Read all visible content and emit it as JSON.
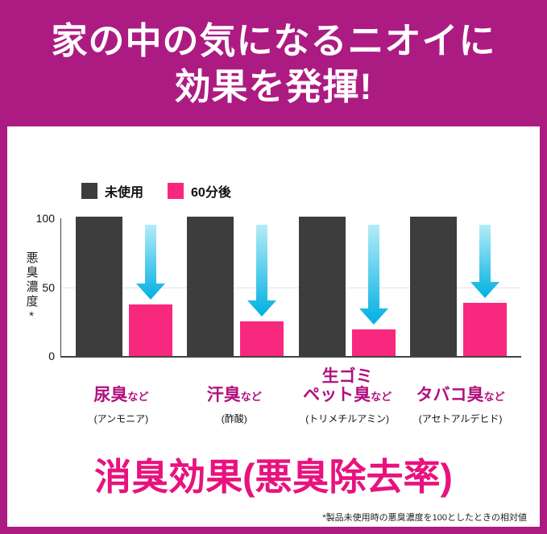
{
  "banner": {
    "line1": "家の中の気になるニオイに",
    "line2": "効果を発揮!"
  },
  "chart_data": {
    "type": "bar",
    "title": "",
    "ylabel": "悪臭濃度*",
    "ylim": [
      0,
      100
    ],
    "yticks": [
      100,
      50,
      0
    ],
    "legend": [
      "未使用",
      "60分後"
    ],
    "legend_position": "top-left",
    "grid": false,
    "series": [
      {
        "name": "未使用",
        "color": "#3d3d3d",
        "values": [
          100,
          100,
          100,
          100
        ]
      },
      {
        "name": "60分後",
        "color": "#f8287e",
        "values": [
          37,
          25,
          19,
          38
        ]
      }
    ],
    "categories": [
      {
        "line1": "尿臭",
        "suffix1": "など",
        "sub": "(アンモニア)"
      },
      {
        "line1": "汗臭",
        "suffix1": "など",
        "sub": "(酢酸)"
      },
      {
        "line1": "生ゴミ",
        "line2": "ペット臭",
        "suffix2": "など",
        "sub": "(トリメチルアミン)"
      },
      {
        "line1": "タバコ臭",
        "suffix1": "など",
        "sub": "(アセトアルデヒド)"
      }
    ]
  },
  "footer": {
    "title": "消臭効果(悪臭除去率)",
    "note": "*製品未使用時の悪臭濃度を100としたときの相対値"
  },
  "colors": {
    "frame_magenta": "#ac1b82",
    "bar_dark": "#3d3d3d",
    "bar_pink": "#f8287e",
    "arrow_cyan_light": "#b3ecf8",
    "arrow_cyan_dark": "#00b0e2",
    "category_magenta": "#b1107e",
    "title_pink": "#e8127f"
  }
}
